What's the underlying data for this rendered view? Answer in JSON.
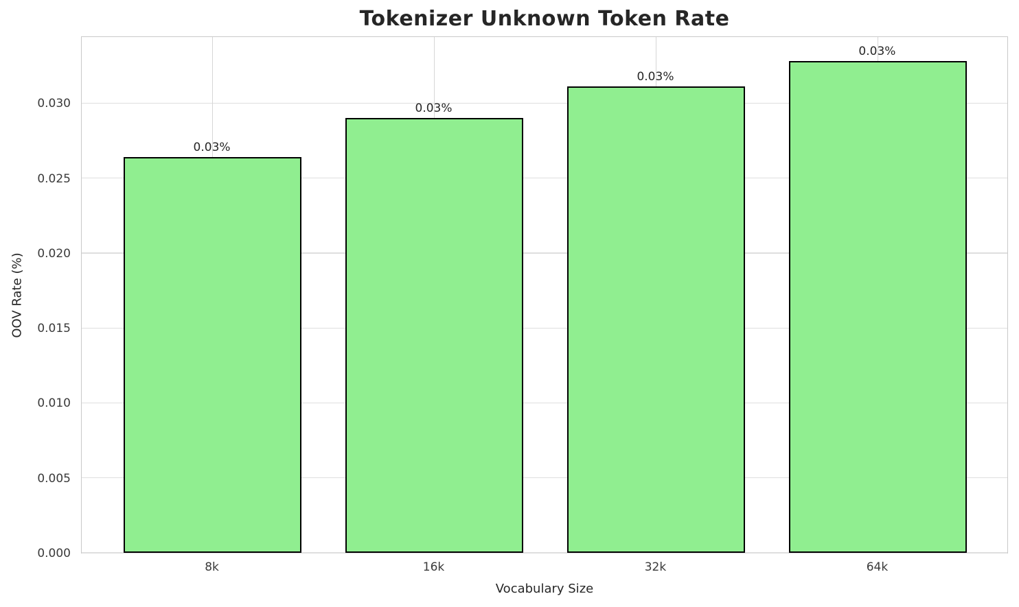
{
  "chart_data": {
    "type": "bar",
    "title": "Tokenizer Unknown Token Rate",
    "xlabel": "Vocabulary Size",
    "ylabel": "OOV Rate (%)",
    "categories": [
      "8k",
      "16k",
      "32k",
      "64k"
    ],
    "values": [
      0.0264,
      0.029,
      0.0311,
      0.0328
    ],
    "bar_labels": [
      "0.03%",
      "0.03%",
      "0.03%",
      "0.03%"
    ],
    "ytick_values": [
      0.0,
      0.005,
      0.01,
      0.015,
      0.02,
      0.025,
      0.03
    ],
    "ytick_labels": [
      "0.000",
      "0.005",
      "0.010",
      "0.015",
      "0.020",
      "0.025",
      "0.030"
    ],
    "ylim": [
      0,
      0.0345
    ],
    "grid": true,
    "legend": null,
    "bar_color": "#90EE90",
    "bar_edge_color": "#000000",
    "grid_color": "#dedede",
    "spine_color": "#c9c9c9",
    "title_color": "#262626",
    "tick_color": "#3a3a3a"
  }
}
